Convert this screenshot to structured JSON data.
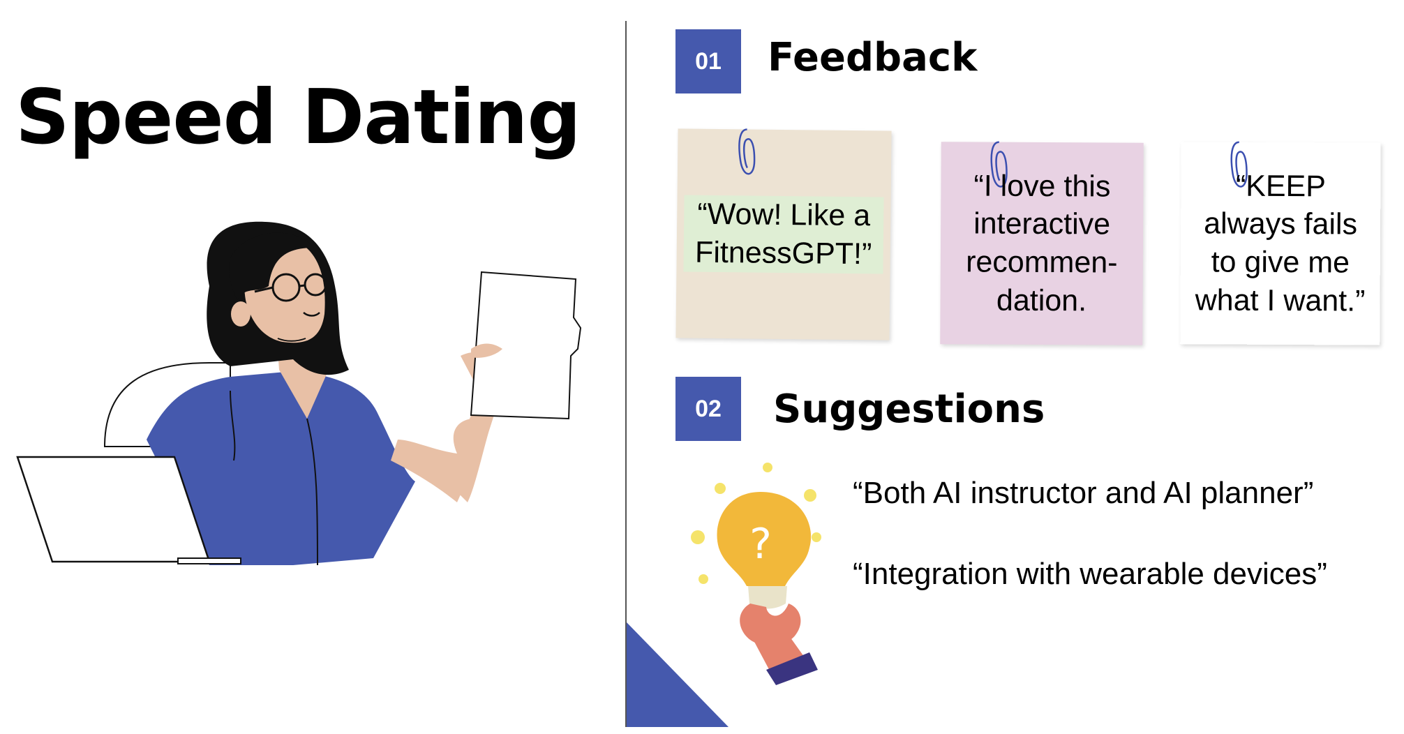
{
  "title": "Speed Dating",
  "sections": [
    {
      "number": "01",
      "heading": "Feedback"
    },
    {
      "number": "02",
      "heading": "Suggestions"
    }
  ],
  "feedback_notes": [
    {
      "text": "“Wow! Like a FitnessGPT!”",
      "color": "#ede3d3"
    },
    {
      "text": "“I love this interactive recommen-dation.",
      "color": "#dfeed4"
    },
    {
      "text": "“KEEP always fails to give me what I want.”",
      "color": "#e8d2e3"
    }
  ],
  "suggestions": [
    "“Both AI instructor and AI planner”",
    "“Integration with wearable devices”"
  ],
  "colors": {
    "accent": "#4559ad",
    "skin": "#e8c0a6",
    "hair": "#111111",
    "bulb": "#f2b83a"
  },
  "icons": [
    "woman-with-laptop-illustration",
    "paperclip-icon",
    "lightbulb-question-icon"
  ]
}
